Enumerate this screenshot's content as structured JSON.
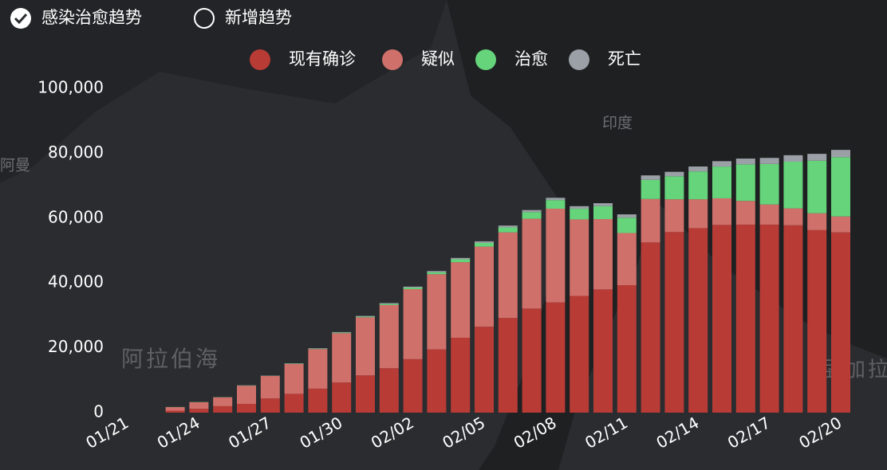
{
  "toggles": [
    {
      "label": "感染治愈趋势",
      "checked": true
    },
    {
      "label": "新增趋势",
      "checked": false
    }
  ],
  "map_labels": [
    "阿曼",
    "印度",
    "阿拉伯海",
    "孟加拉"
  ],
  "chart_data": {
    "type": "bar",
    "stacked": true,
    "categories": [
      "01/21",
      null,
      null,
      "01/24",
      null,
      null,
      "01/27",
      null,
      null,
      "01/30",
      null,
      null,
      "02/02",
      null,
      null,
      "02/05",
      null,
      null,
      "02/08",
      null,
      null,
      "02/11",
      null,
      null,
      "02/14",
      null,
      null,
      "02/17",
      null,
      null,
      "02/20"
    ],
    "series": [
      {
        "name": "现有确诊",
        "color": "#b83b36",
        "values": [
          0,
          0,
          600,
          1200,
          2000,
          2700,
          4400,
          5800,
          7400,
          9300,
          11500,
          13700,
          16500,
          19500,
          23100,
          26500,
          29200,
          32100,
          34000,
          36000,
          38000,
          39300,
          52500,
          55700,
          56900,
          57900,
          58000,
          58000,
          57800,
          56300,
          55600
        ]
      },
      {
        "name": "疑似",
        "color": "#d0706b",
        "values": [
          0,
          0,
          1100,
          2000,
          2700,
          5600,
          6900,
          9200,
          12200,
          15200,
          17900,
          19500,
          21600,
          23200,
          23300,
          24700,
          26400,
          27700,
          28900,
          23600,
          21700,
          16100,
          13400,
          10100,
          8900,
          8200,
          7300,
          6200,
          5200,
          5200,
          4900
        ]
      },
      {
        "name": "治愈",
        "color": "#65d47a",
        "values": [
          0,
          0,
          30,
          50,
          50,
          60,
          50,
          100,
          120,
          170,
          220,
          330,
          470,
          630,
          890,
          1150,
          1540,
          2050,
          2650,
          3280,
          3990,
          4740,
          5910,
          7100,
          8600,
          9800,
          11300,
          12500,
          14400,
          16200,
          18300
        ]
      },
      {
        "name": "死亡",
        "color": "#9aa0a6",
        "values": [
          0,
          0,
          20,
          30,
          50,
          80,
          80,
          100,
          160,
          170,
          210,
          260,
          300,
          360,
          430,
          490,
          560,
          640,
          720,
          810,
          910,
          1020,
          1370,
          1380,
          1520,
          1660,
          1770,
          1870,
          2000,
          2120,
          2240
        ]
      }
    ],
    "ylim": [
      0,
      100000
    ],
    "yticks": [
      0,
      {
        "value": 20000,
        "label": "20,000"
      },
      {
        "value": 40000,
        "label": "40,000"
      },
      {
        "value": 60000,
        "label": "60,000"
      },
      {
        "value": 80000,
        "label": "80,000"
      },
      {
        "value": 100000,
        "label": "100,000"
      }
    ],
    "legend": "top"
  }
}
